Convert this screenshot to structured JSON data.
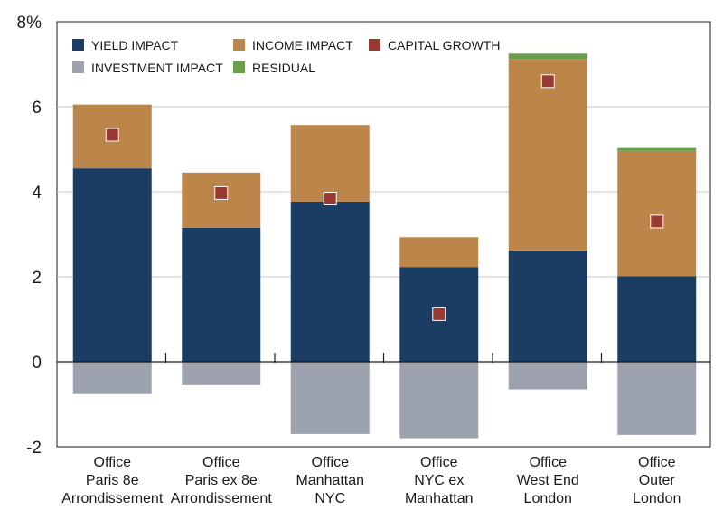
{
  "chart_data": {
    "type": "bar",
    "stacked": true,
    "categories": [
      [
        "Office",
        "Paris 8e",
        "Arrondissement"
      ],
      [
        "Office",
        "Paris ex 8e",
        "Arrondissement"
      ],
      [
        "Office",
        "Manhattan",
        "NYC"
      ],
      [
        "Office",
        "NYC ex",
        "Manhattan"
      ],
      [
        "Office",
        "West End",
        "London"
      ],
      [
        "Office",
        "Outer",
        "London"
      ]
    ],
    "series": [
      {
        "name": "YIELD IMPACT",
        "color": "#1c3d63",
        "values": [
          4.55,
          3.15,
          3.77,
          2.23,
          2.62,
          2.01
        ]
      },
      {
        "name": "INCOME IMPACT",
        "color": "#bc864a",
        "values": [
          1.5,
          1.3,
          1.8,
          0.7,
          4.5,
          2.95
        ]
      },
      {
        "name": "RESIDUAL",
        "color": "#6a9e4a",
        "values": [
          0,
          0,
          0,
          0,
          0.13,
          0.07
        ]
      },
      {
        "name": "INVESTMENT IMPACT",
        "color": "#9da3ae",
        "values": [
          -0.76,
          -0.55,
          -1.7,
          -1.8,
          -0.65,
          -1.72
        ]
      }
    ],
    "marker_series": {
      "name": "CAPITAL GROWTH",
      "color": "#963a32",
      "values": [
        5.34,
        3.97,
        3.84,
        1.12,
        6.6,
        3.3
      ]
    },
    "y_ticks": [
      {
        "value": 8,
        "label": "8%"
      },
      {
        "value": 6,
        "label": "6"
      },
      {
        "value": 4,
        "label": "4"
      },
      {
        "value": 2,
        "label": "2"
      },
      {
        "value": 0,
        "label": "0"
      },
      {
        "value": -2,
        "label": "-2"
      }
    ],
    "ylim": [
      -2,
      8
    ],
    "grid": true,
    "legend": [
      {
        "name": "YIELD IMPACT",
        "color": "#1c3d63",
        "shape": "square"
      },
      {
        "name": "INCOME IMPACT",
        "color": "#bc864a",
        "shape": "square"
      },
      {
        "name": "CAPITAL GROWTH",
        "color": "#963a32",
        "shape": "square"
      },
      {
        "name": "INVESTMENT IMPACT",
        "color": "#9da3ae",
        "shape": "square"
      },
      {
        "name": "RESIDUAL",
        "color": "#6a9e4a",
        "shape": "square"
      }
    ],
    "legend_position": "top-left"
  }
}
